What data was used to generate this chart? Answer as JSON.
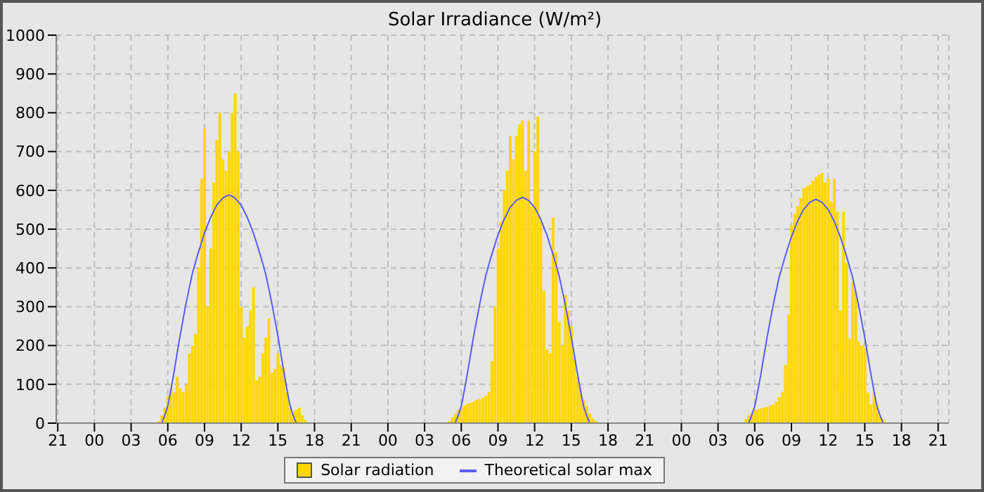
{
  "chart_data": {
    "type": "bar",
    "title": "Solar Irradiance (W/m²)",
    "categories": [
      "21",
      null,
      null,
      null,
      null,
      null,
      null,
      null,
      null,
      null,
      null,
      null,
      "00",
      null,
      null,
      null,
      null,
      null,
      null,
      null,
      null,
      null,
      null,
      null,
      "03",
      null,
      null,
      null,
      null,
      null,
      null,
      null,
      null,
      null,
      null,
      null,
      "06",
      null,
      null,
      null,
      null,
      null,
      null,
      null,
      null,
      null,
      null,
      null,
      "09",
      null,
      null,
      null,
      null,
      null,
      null,
      null,
      null,
      null,
      null,
      null,
      "12",
      null,
      null,
      null,
      null,
      null,
      null,
      null,
      null,
      null,
      null,
      null,
      "15",
      null,
      null,
      null,
      null,
      null,
      null,
      null,
      null,
      null,
      null,
      null,
      "18",
      null,
      null,
      null,
      null,
      null,
      null,
      null,
      null,
      null,
      null,
      null,
      "21",
      null,
      null,
      null,
      null,
      null,
      null,
      null,
      null,
      null,
      null,
      null,
      "00",
      null,
      null,
      null,
      null,
      null,
      null,
      null,
      null,
      null,
      null,
      null,
      "03",
      null,
      null,
      null,
      null,
      null,
      null,
      null,
      null,
      null,
      null,
      null,
      "06",
      null,
      null,
      null,
      null,
      null,
      null,
      null,
      null,
      null,
      null,
      null,
      "09",
      null,
      null,
      null,
      null,
      null,
      null,
      null,
      null,
      null,
      null,
      null,
      "12",
      null,
      null,
      null,
      null,
      null,
      null,
      null,
      null,
      null,
      null,
      null,
      "15",
      null,
      null,
      null,
      null,
      null,
      null,
      null,
      null,
      null,
      null,
      null,
      "18",
      null,
      null,
      null,
      null,
      null,
      null,
      null,
      null,
      null,
      null,
      null,
      "21",
      null,
      null,
      null,
      null,
      null,
      null,
      null,
      null,
      null,
      null,
      null,
      "00",
      null,
      null,
      null,
      null,
      null,
      null,
      null,
      null,
      null,
      null,
      null,
      "03",
      null,
      null,
      null,
      null,
      null,
      null,
      null,
      null,
      null,
      null,
      null,
      "06",
      null,
      null,
      null,
      null,
      null,
      null,
      null,
      null,
      null,
      null,
      null,
      "09",
      null,
      null,
      null,
      null,
      null,
      null,
      null,
      null,
      null,
      null,
      null,
      "12",
      null,
      null,
      null,
      null,
      null,
      null,
      null,
      null,
      null,
      null,
      null,
      "15",
      null,
      null,
      null,
      null,
      null,
      null,
      null,
      null,
      null,
      null,
      null,
      "18",
      null,
      null,
      null,
      null,
      null,
      null,
      null,
      null,
      null,
      null,
      null,
      "21",
      null,
      null,
      null
    ],
    "ylim": [
      0,
      1000
    ],
    "yticks": [
      0,
      100,
      200,
      300,
      400,
      500,
      600,
      700,
      800,
      900,
      1000
    ],
    "grid": true,
    "legend": "bottom",
    "marker": "none",
    "line_style": "solid",
    "series": [
      {
        "name": "Solar radiation",
        "color": "#ffd700",
        "values": [
          null,
          null,
          null,
          null,
          null,
          null,
          null,
          null,
          null,
          null,
          null,
          null,
          null,
          null,
          null,
          null,
          null,
          null,
          null,
          null,
          null,
          null,
          null,
          null,
          null,
          null,
          null,
          null,
          null,
          null,
          null,
          null,
          null,
          5,
          20,
          40,
          70,
          90,
          80,
          120,
          90,
          80,
          100,
          180,
          200,
          230,
          400,
          630,
          760,
          300,
          450,
          620,
          730,
          800,
          680,
          650,
          700,
          800,
          850,
          700,
          300,
          220,
          250,
          290,
          350,
          110,
          120,
          180,
          220,
          270,
          130,
          140,
          180,
          150,
          140,
          80,
          40,
          30,
          35,
          40,
          20,
          8,
          null,
          null,
          null,
          null,
          null,
          null,
          null,
          null,
          null,
          null,
          null,
          null,
          null,
          null,
          null,
          null,
          null,
          null,
          null,
          null,
          null,
          null,
          null,
          null,
          null,
          null,
          null,
          null,
          null,
          null,
          null,
          null,
          null,
          null,
          null,
          null,
          null,
          null,
          null,
          null,
          null,
          null,
          null,
          null,
          null,
          null,
          5,
          15,
          25,
          35,
          40,
          45,
          50,
          52,
          55,
          60,
          62,
          65,
          70,
          80,
          160,
          300,
          450,
          520,
          600,
          650,
          740,
          680,
          740,
          770,
          780,
          650,
          780,
          560,
          700,
          790,
          520,
          340,
          190,
          180,
          530,
          440,
          260,
          200,
          330,
          290,
          250,
          170,
          120,
          90,
          60,
          45,
          25,
          12,
          5,
          null,
          null,
          null,
          null,
          null,
          null,
          null,
          null,
          null,
          null,
          null,
          null,
          null,
          null,
          null,
          null,
          null,
          null,
          null,
          null,
          null,
          null,
          null,
          null,
          null,
          null,
          null,
          null,
          null,
          null,
          null,
          null,
          null,
          null,
          null,
          null,
          null,
          null,
          null,
          null,
          null,
          null,
          null,
          null,
          null,
          null,
          null,
          null,
          10,
          20,
          28,
          33,
          36,
          38,
          40,
          42,
          45,
          48,
          55,
          67,
          80,
          150,
          280,
          510,
          540,
          560,
          580,
          605,
          610,
          615,
          625,
          635,
          640,
          645,
          620,
          630,
          570,
          630,
          545,
          290,
          545,
          412,
          218,
          363,
          340,
          210,
          200,
          194,
          79,
          48,
          79,
          48,
          18,
          10,
          null,
          null,
          null,
          null,
          null,
          null,
          null,
          null,
          null,
          null,
          null,
          null,
          null,
          null,
          null,
          null,
          null,
          null,
          null,
          null,
          null
        ]
      },
      {
        "name": "Theoretical solar max",
        "type": "line",
        "color": "#5b5bff",
        "values": [
          null,
          null,
          null,
          null,
          null,
          null,
          null,
          null,
          null,
          null,
          null,
          null,
          null,
          null,
          null,
          null,
          null,
          null,
          null,
          null,
          null,
          null,
          null,
          null,
          null,
          null,
          null,
          null,
          null,
          null,
          null,
          null,
          null,
          null,
          0,
          20,
          45,
          85,
          130,
          178,
          225,
          268,
          310,
          348,
          385,
          413,
          440,
          465,
          490,
          510,
          530,
          546,
          562,
          571,
          580,
          585,
          588,
          585,
          580,
          571,
          562,
          546,
          530,
          510,
          490,
          465,
          440,
          413,
          385,
          348,
          310,
          268,
          225,
          178,
          130,
          85,
          45,
          20,
          0,
          null,
          null,
          null,
          null,
          null,
          null,
          null,
          null,
          null,
          null,
          null,
          null,
          null,
          null,
          null,
          null,
          null,
          null,
          null,
          null,
          null,
          null,
          null,
          null,
          null,
          null,
          null,
          null,
          null,
          null,
          null,
          null,
          null,
          null,
          null,
          null,
          null,
          null,
          null,
          null,
          null,
          null,
          null,
          null,
          null,
          null,
          null,
          null,
          null,
          null,
          null,
          0,
          20,
          44,
          84,
          128,
          175,
          222,
          264,
          306,
          343,
          380,
          408,
          435,
          460,
          485,
          505,
          525,
          541,
          556,
          565,
          574,
          578,
          582,
          578,
          574,
          565,
          556,
          541,
          525,
          505,
          485,
          460,
          435,
          408,
          380,
          343,
          306,
          264,
          222,
          175,
          128,
          84,
          44,
          20,
          0,
          null,
          null,
          null,
          null,
          null,
          null,
          null,
          null,
          null,
          null,
          null,
          null,
          null,
          null,
          null,
          null,
          null,
          null,
          null,
          null,
          null,
          null,
          null,
          null,
          null,
          null,
          null,
          null,
          null,
          null,
          null,
          null,
          null,
          null,
          null,
          null,
          null,
          null,
          null,
          null,
          null,
          null,
          null,
          null,
          null,
          null,
          null,
          null,
          null,
          null,
          null,
          0,
          20,
          43,
          83,
          126,
          173,
          220,
          262,
          303,
          340,
          377,
          404,
          431,
          456,
          480,
          500,
          520,
          536,
          551,
          560,
          569,
          573,
          577,
          573,
          569,
          560,
          551,
          536,
          520,
          500,
          480,
          456,
          431,
          404,
          377,
          340,
          303,
          262,
          220,
          173,
          126,
          83,
          43,
          20,
          0,
          null,
          null,
          null,
          null,
          null,
          null,
          null,
          null,
          null,
          null,
          null,
          null,
          null,
          null,
          null,
          null,
          null,
          null,
          null,
          null,
          null
        ]
      }
    ]
  }
}
